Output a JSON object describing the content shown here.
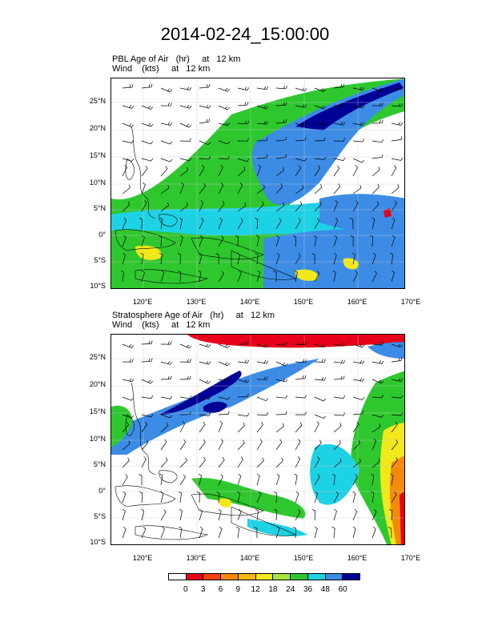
{
  "title": "2014-02-24_15:00:00",
  "panels": [
    {
      "label_line1": "PBL Age of Air   (hr)     at   12 km",
      "label_line2": "Wind    (kts)     at   12 km"
    },
    {
      "label_line1": "Stratosphere Age of Air   (hr)     at   12 km",
      "label_line2": "Wind    (kts)     at   12 km"
    }
  ],
  "lat_ticks": [
    "25°N",
    "20°N",
    "15°N",
    "10°N",
    "5°N",
    "0°",
    "5°S",
    "10°S"
  ],
  "lon_ticks": [
    "120°E",
    "130°E",
    "140°E",
    "150°E",
    "160°E",
    "170°E"
  ],
  "colorbar": {
    "labels": [
      "0",
      "3",
      "6",
      "9",
      "12",
      "18",
      "24",
      "36",
      "48",
      "60"
    ],
    "colors": [
      "#ffffff",
      "#e8001a",
      "#f2420c",
      "#f58a0a",
      "#f5b90a",
      "#f2e81a",
      "#a6e63c",
      "#2ec82e",
      "#1ed2e6",
      "#3c8ce6",
      "#000096"
    ]
  },
  "colors": {
    "green": "#2ec82e",
    "lightgreen": "#a6e63c",
    "cyan": "#1ed2e6",
    "blue": "#3c8ce6",
    "navy": "#000096",
    "red": "#e8001a",
    "orange": "#f58a0a",
    "yellow": "#f2e81a"
  }
}
